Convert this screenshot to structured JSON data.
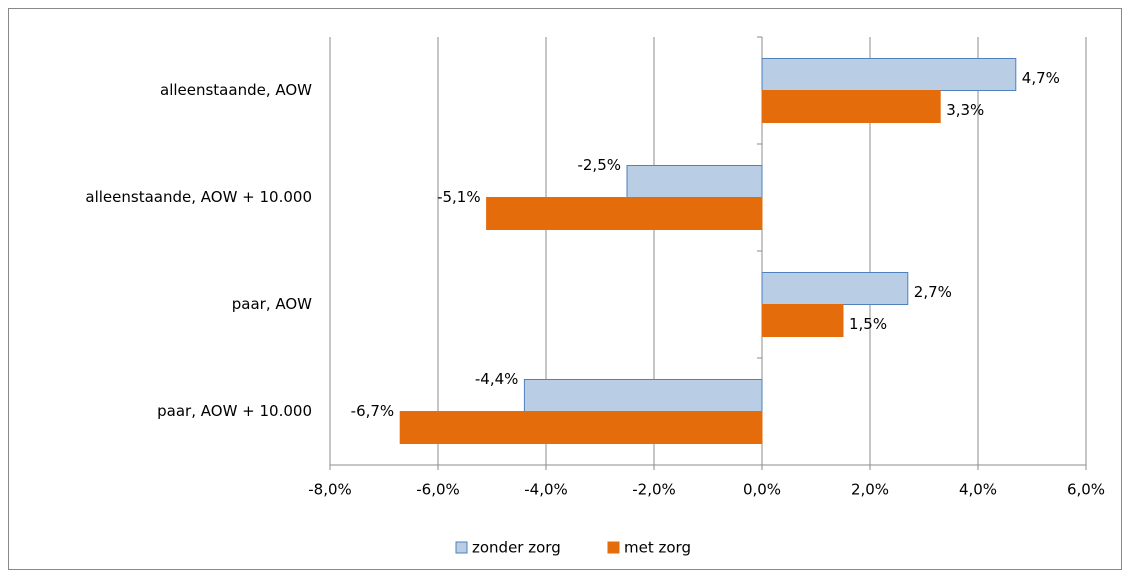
{
  "chart_data": {
    "type": "bar",
    "orientation": "horizontal",
    "categories": [
      "alleenstaande, AOW",
      "alleenstaande, AOW + 10.000",
      "paar, AOW",
      "paar, AOW + 10.000"
    ],
    "series": [
      {
        "name": "zonder zorg",
        "color": "#b9cde5",
        "values": [
          4.7,
          -2.5,
          2.7,
          -4.4
        ],
        "value_labels": [
          "4,7%",
          "-2,5%",
          "2,7%",
          "-4,4%"
        ]
      },
      {
        "name": "met zorg",
        "color": "#e46c0a",
        "values": [
          3.3,
          -5.1,
          1.5,
          -6.7
        ],
        "value_labels": [
          "3,3%",
          "-5,1%",
          "1,5%",
          "-6,7%"
        ]
      }
    ],
    "xlim": [
      -8,
      6
    ],
    "xticks": [
      {
        "value": -8,
        "label": "-8,0%"
      },
      {
        "value": -6,
        "label": "-6,0%"
      },
      {
        "value": -4,
        "label": "-4,0%"
      },
      {
        "value": -2,
        "label": "-2,0%"
      },
      {
        "value": 0,
        "label": "0,0%"
      },
      {
        "value": 2,
        "label": "2,0%"
      },
      {
        "value": 4,
        "label": "4,0%"
      },
      {
        "value": 6,
        "label": "6,0%"
      }
    ],
    "grid": true,
    "legend": "bottom"
  }
}
